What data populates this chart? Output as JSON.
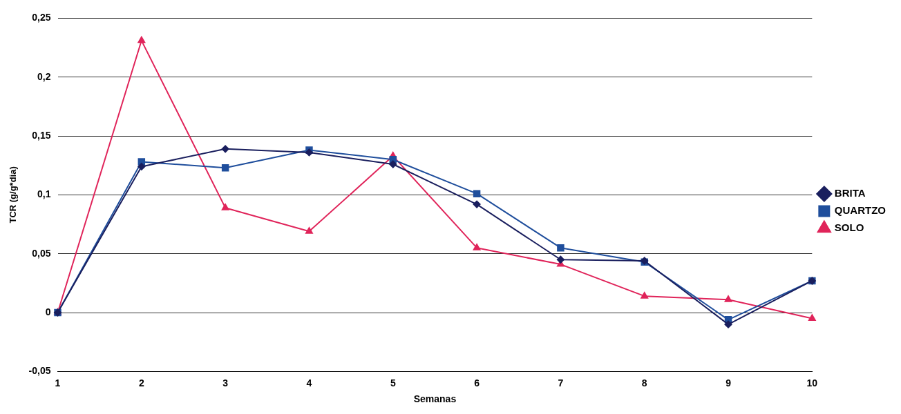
{
  "chart_data": {
    "type": "line",
    "xlabel": "Semanas",
    "ylabel": "TCR (g/g*dia)",
    "categories": [
      "1",
      "2",
      "3",
      "4",
      "5",
      "6",
      "7",
      "8",
      "9",
      "10"
    ],
    "series": [
      {
        "name": "BRITA",
        "color": "#1a1f5e",
        "marker": "diamond",
        "values": [
          0,
          0.124,
          0.139,
          0.136,
          0.126,
          0.092,
          0.045,
          0.044,
          -0.01,
          0.027
        ]
      },
      {
        "name": "QUARTZO",
        "color": "#1f4e9c",
        "marker": "square",
        "values": [
          0,
          0.128,
          0.123,
          0.138,
          0.13,
          0.101,
          0.055,
          0.043,
          -0.006,
          0.027
        ]
      },
      {
        "name": "SOLO",
        "color": "#e0245a",
        "marker": "triangle",
        "values": [
          0,
          0.231,
          0.089,
          0.069,
          0.133,
          0.055,
          0.041,
          0.014,
          0.011,
          -0.005
        ]
      }
    ],
    "ylim": [
      -0.05,
      0.25
    ],
    "yticks": [
      {
        "value": -0.05,
        "label": "-0,05"
      },
      {
        "value": 0,
        "label": "0"
      },
      {
        "value": 0.05,
        "label": "0,05"
      },
      {
        "value": 0.1,
        "label": "0,1"
      },
      {
        "value": 0.15,
        "label": "0,15"
      },
      {
        "value": 0.2,
        "label": "0,2"
      },
      {
        "value": 0.25,
        "label": "0,25"
      }
    ],
    "grid": "y",
    "legend": "right",
    "line_style": "solid"
  }
}
